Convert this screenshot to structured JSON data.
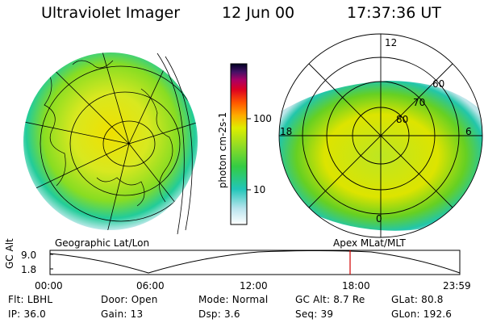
{
  "header": {
    "instrument": "Ultraviolet Imager",
    "date": "12 Jun 00",
    "time": "17:37:36 UT"
  },
  "colorbar": {
    "unit_label": "photon cm-2s-1",
    "ticks": [
      "100",
      "10"
    ]
  },
  "left_panel": {
    "caption": "Geographic Lat/Lon"
  },
  "right_panel": {
    "caption": "Apex MLat/MLT",
    "mlt_labels": {
      "top": "12",
      "left": "18",
      "right": "6",
      "bottom": "0"
    },
    "lat_labels": [
      "60",
      "70",
      "80"
    ]
  },
  "timeline": {
    "ylabel": "GC Alt",
    "ticks_y": [
      "9.0",
      "1.8"
    ],
    "ticks_x": [
      "00:00",
      "06:00",
      "12:00",
      "18:00",
      "23:59"
    ],
    "marker_color": "#d00000"
  },
  "info": {
    "row1": [
      {
        "label": "Flt:",
        "value": "LBHL"
      },
      {
        "label": "Door:",
        "value": "Open"
      },
      {
        "label": "Mode:",
        "value": "Normal"
      },
      {
        "label": "GC Alt:",
        "value": "8.7 Re"
      },
      {
        "label": "GLat:",
        "value": "80.8"
      }
    ],
    "row2": [
      {
        "label": "IP:",
        "value": "36.0"
      },
      {
        "label": "Gain:",
        "value": "13"
      },
      {
        "label": "Dsp:",
        "value": "3.6"
      },
      {
        "label": "Seq:",
        "value": "39"
      },
      {
        "label": "GLon:",
        "value": "192.6"
      }
    ]
  }
}
